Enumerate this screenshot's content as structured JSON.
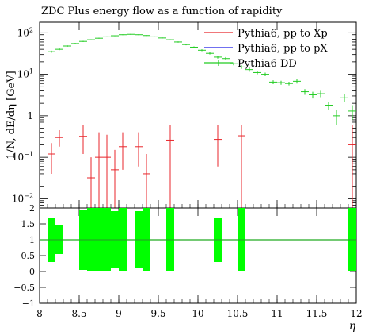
{
  "chart_data": [
    {
      "panel": "main",
      "type": "scatter",
      "title": "ZDC Plus energy flow as a function of rapidity",
      "ylabel": "1/N, dE/dη [GeV]",
      "ylim": [
        0.006,
        180
      ],
      "yscale": "log",
      "yticks": [
        {
          "value": 0.01,
          "mant": "10",
          "exp": "−2"
        },
        {
          "value": 0.1,
          "mant": "10",
          "exp": "−1"
        },
        {
          "value": 1,
          "mant": "1",
          "exp": ""
        },
        {
          "value": 10,
          "mant": "10",
          "exp": "1"
        },
        {
          "value": 100,
          "mant": "10",
          "exp": "2"
        }
      ],
      "legend_position": "top-right",
      "series": [
        {
          "name": "Pythia6, pp to Xp",
          "color": "#e8262b",
          "x": [
            8.15,
            8.25,
            8.55,
            8.65,
            8.75,
            8.85,
            8.95,
            9.05,
            9.25,
            9.35,
            9.65,
            10.25,
            10.55,
            11.95
          ],
          "y": [
            0.12,
            0.3,
            0.32,
            0.032,
            0.1,
            0.1,
            0.05,
            0.18,
            0.18,
            0.04,
            0.26,
            0.27,
            0.33,
            0.2
          ],
          "ylow": [
            0.04,
            0.18,
            0.12,
            0.006,
            0.006,
            0.006,
            0.006,
            0.05,
            0.06,
            0.006,
            0.006,
            0.06,
            0.006,
            0.006
          ],
          "yhigh": [
            0.22,
            0.45,
            0.6,
            0.1,
            0.4,
            0.35,
            0.15,
            0.4,
            0.4,
            0.12,
            0.6,
            0.6,
            0.6,
            0.6
          ]
        },
        {
          "name": "Pythia6, pp to pX",
          "color": "#1a1ae6",
          "x": [],
          "y": []
        },
        {
          "name": "Pythia6 DD",
          "color": "#22cc22",
          "x": [
            8.15,
            8.25,
            8.35,
            8.45,
            8.55,
            8.65,
            8.75,
            8.85,
            8.95,
            9.05,
            9.15,
            9.25,
            9.35,
            9.45,
            9.55,
            9.65,
            9.75,
            9.85,
            9.95,
            10.05,
            10.15,
            10.25,
            10.35,
            10.45,
            10.55,
            10.65,
            10.75,
            10.85,
            10.95,
            11.05,
            11.15,
            11.25,
            11.35,
            11.45,
            11.55,
            11.65,
            11.75,
            11.85,
            11.95
          ],
          "y": [
            35,
            40,
            48,
            55,
            62,
            68,
            74,
            80,
            85,
            90,
            92,
            90,
            86,
            80,
            75,
            68,
            60,
            52,
            45,
            38,
            32,
            26,
            24,
            18,
            15,
            13,
            11,
            10,
            6.5,
            6.3,
            6.0,
            6.8,
            3.8,
            3.2,
            3.4,
            1.8,
            1.0,
            2.7,
            1.3
          ],
          "ylow": [
            33,
            38,
            46,
            53,
            60,
            66,
            72,
            78,
            83,
            88,
            90,
            88,
            84,
            78,
            73,
            66,
            58,
            50,
            43,
            36,
            30,
            24,
            22,
            16.5,
            13.5,
            11.5,
            10,
            9,
            5.8,
            5.6,
            5.4,
            6.0,
            3.2,
            2.6,
            2.8,
            1.4,
            0.6,
            2.1,
            0.8
          ],
          "yhigh": [
            37,
            42,
            50,
            57,
            64,
            70,
            76,
            82,
            87,
            92,
            94,
            92,
            88,
            82,
            77,
            70,
            62,
            54,
            47,
            40,
            34,
            28,
            26,
            19.5,
            16.5,
            14.5,
            12,
            11,
            7.2,
            7.0,
            6.6,
            7.6,
            4.4,
            3.8,
            4.0,
            2.2,
            1.4,
            3.3,
            1.8
          ]
        }
      ]
    },
    {
      "panel": "ratio",
      "type": "bar",
      "xlabel": "η",
      "xlim": [
        8,
        12
      ],
      "xticks": [
        "8",
        "8.5",
        "9",
        "9.5",
        "10",
        "10.5",
        "11",
        "11.5",
        "12"
      ],
      "ylim": [
        -1,
        2
      ],
      "yticks": [
        "−1",
        "−0.5",
        "0",
        "0.5",
        "1",
        "1.5",
        "2"
      ],
      "reference_line": 1,
      "bands": {
        "color": "#00ff00",
        "bins": [
          {
            "x0": 8.1,
            "x1": 8.2,
            "low": 0.3,
            "high": 1.7
          },
          {
            "x0": 8.2,
            "x1": 8.3,
            "low": 0.55,
            "high": 1.45
          },
          {
            "x0": 8.5,
            "x1": 8.6,
            "low": 0.05,
            "high": 1.95
          },
          {
            "x0": 8.6,
            "x1": 8.7,
            "low": 0,
            "high": 2
          },
          {
            "x0": 8.7,
            "x1": 8.8,
            "low": 0,
            "high": 2
          },
          {
            "x0": 8.8,
            "x1": 8.9,
            "low": 0,
            "high": 2
          },
          {
            "x0": 8.9,
            "x1": 9.0,
            "low": 0.1,
            "high": 1.9
          },
          {
            "x0": 9.0,
            "x1": 9.1,
            "low": 0,
            "high": 2
          },
          {
            "x0": 9.2,
            "x1": 9.3,
            "low": 0.1,
            "high": 1.9
          },
          {
            "x0": 9.3,
            "x1": 9.4,
            "low": 0,
            "high": 2
          },
          {
            "x0": 9.6,
            "x1": 9.7,
            "low": 0,
            "high": 2
          },
          {
            "x0": 10.2,
            "x1": 10.3,
            "low": 0.3,
            "high": 1.7
          },
          {
            "x0": 10.5,
            "x1": 10.6,
            "low": 0,
            "high": 2
          },
          {
            "x0": 11.9,
            "x1": 12.0,
            "low": 0,
            "high": 2
          }
        ]
      }
    }
  ]
}
